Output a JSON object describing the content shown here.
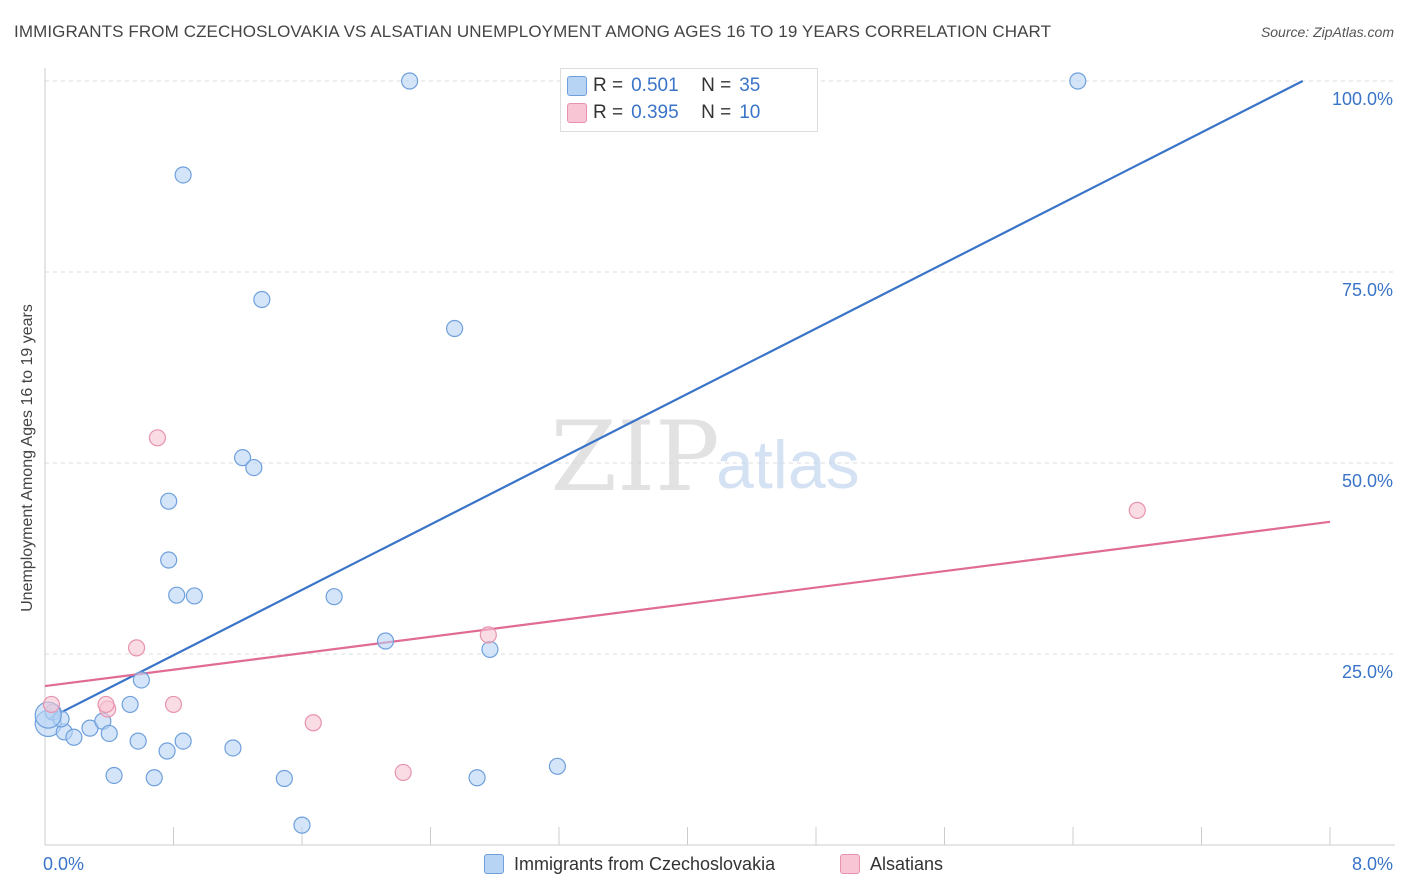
{
  "header": {
    "title": "IMMIGRANTS FROM CZECHOSLOVAKIA VS ALSATIAN UNEMPLOYMENT AMONG AGES 16 TO 19 YEARS CORRELATION CHART",
    "source": "Source: ZipAtlas.com"
  },
  "legend_top": {
    "r_label": "R =",
    "n_label": "N =",
    "czech_r": "0.501",
    "czech_n": "35",
    "alsatian_r": "0.395",
    "alsatian_n": "10"
  },
  "legend_bottom": {
    "czech": "Immigrants from Czechoslovakia",
    "alsatian": "Alsatians"
  },
  "watermark": {
    "zip": "ZIP",
    "atlas": "atlas"
  },
  "colors": {
    "czech_fill": "#b8d4f5",
    "czech_stroke": "#6fa0dc",
    "czech_line": "#3a74c8",
    "alsatian_fill": "#f7c5d4",
    "alsatian_stroke": "#e893ad",
    "alsatian_line": "#e06b95",
    "tick_label": "#3a74c8"
  },
  "chart_data": {
    "type": "scatter",
    "title": "IMMIGRANTS FROM CZECHOSLOVAKIA VS ALSATIAN UNEMPLOYMENT AMONG AGES 16 TO 19 YEARS CORRELATION CHART",
    "xlabel": "",
    "ylabel": "Unemployment Among Ages 16 to 19 years",
    "xlim": [
      0,
      8
    ],
    "ylim": [
      0,
      100
    ],
    "x_tick_labels": [
      "0.0%",
      "8.0%"
    ],
    "y_tick_labels": [
      {
        "value": 25,
        "label": "25.0%"
      },
      {
        "value": 50,
        "label": "50.0%"
      },
      {
        "value": 75,
        "label": "75.0%"
      },
      {
        "value": 100,
        "label": "100.0%"
      }
    ],
    "grid": true,
    "series": [
      {
        "name": "Immigrants from Czechoslovakia",
        "color": "#6fa0dc",
        "points": [
          [
            0.02,
            15.9
          ],
          [
            0.05,
            17.4
          ],
          [
            0.12,
            14.8
          ],
          [
            0.18,
            14.1
          ],
          [
            0.28,
            15.3
          ],
          [
            0.36,
            16.2
          ],
          [
            0.4,
            14.6
          ],
          [
            0.43,
            9.1
          ],
          [
            0.58,
            13.6
          ],
          [
            0.68,
            8.8
          ],
          [
            0.53,
            18.4
          ],
          [
            0.6,
            21.6
          ],
          [
            0.76,
            12.3
          ],
          [
            0.82,
            32.7
          ],
          [
            0.77,
            37.3
          ],
          [
            0.93,
            32.6
          ],
          [
            0.77,
            45.0
          ],
          [
            0.86,
            13.6
          ],
          [
            1.17,
            12.7
          ],
          [
            1.49,
            8.7
          ],
          [
            1.6,
            2.6
          ],
          [
            1.35,
            71.4
          ],
          [
            0.86,
            87.7
          ],
          [
            1.23,
            50.7
          ],
          [
            1.3,
            49.4
          ],
          [
            1.8,
            32.5
          ],
          [
            2.12,
            26.7
          ],
          [
            2.27,
            100.0
          ],
          [
            2.55,
            67.6
          ],
          [
            2.69,
            8.8
          ],
          [
            2.77,
            25.6
          ],
          [
            3.19,
            10.3
          ],
          [
            6.43,
            100.0
          ],
          [
            0.1,
            16.5
          ],
          [
            0.02,
            17.0
          ]
        ]
      },
      {
        "name": "Alsatians",
        "color": "#e893ad",
        "points": [
          [
            0.04,
            18.4
          ],
          [
            0.39,
            17.8
          ],
          [
            0.57,
            25.8
          ],
          [
            0.7,
            53.3
          ],
          [
            0.8,
            18.4
          ],
          [
            0.38,
            18.4
          ],
          [
            1.67,
            16.0
          ],
          [
            2.23,
            9.5
          ],
          [
            2.76,
            27.5
          ],
          [
            6.8,
            43.8
          ]
        ]
      }
    ],
    "trend_lines": [
      {
        "series": "Immigrants from Czechoslovakia",
        "r": 0.501,
        "n": 35,
        "x": [
          0.02,
          7.83
        ],
        "y": [
          16.5,
          100.0
        ]
      },
      {
        "series": "Alsatians",
        "r": 0.395,
        "n": 10,
        "x": [
          0.0,
          8.0
        ],
        "y": [
          20.8,
          42.3
        ]
      }
    ]
  }
}
